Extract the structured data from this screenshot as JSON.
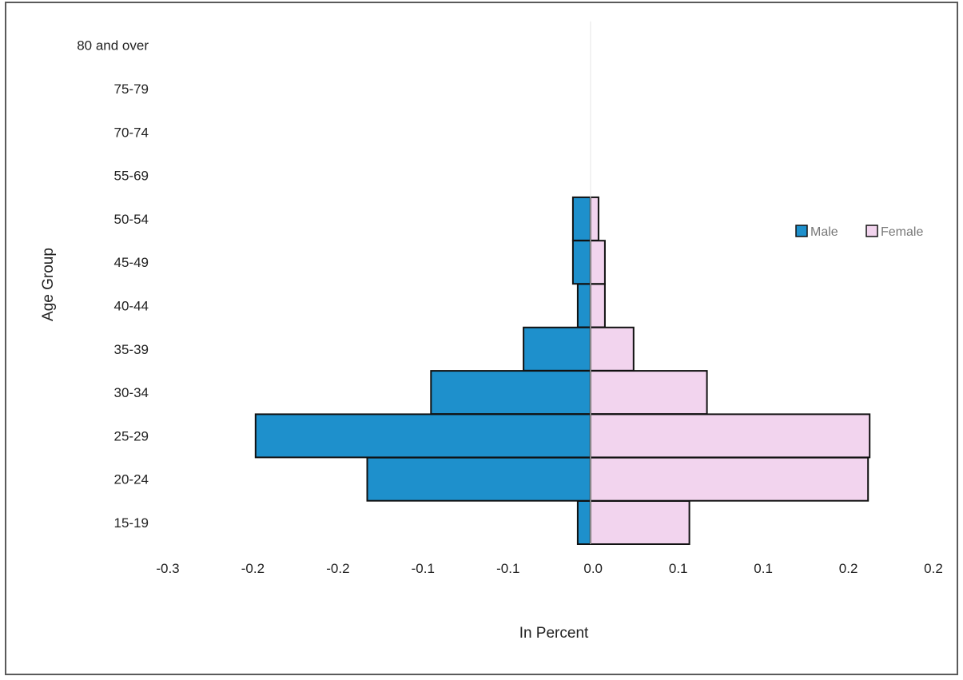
{
  "chart_data": {
    "type": "bar",
    "orientation": "horizontal",
    "subtype": "population-pyramid",
    "categories": [
      "15-19",
      "20-24",
      "25-29",
      "30-34",
      "35-39",
      "40-44",
      "45-49",
      "50-54",
      "55-69",
      "70-74",
      "75-79",
      "80 and over"
    ],
    "series": [
      {
        "name": "Male",
        "color": "#1E90CC",
        "values": [
          -0.008,
          -0.14,
          -0.21,
          -0.1,
          -0.042,
          -0.008,
          -0.011,
          -0.011,
          0,
          0,
          0,
          0
        ]
      },
      {
        "name": "Female",
        "color": "#F2D4EE",
        "values": [
          0.062,
          0.174,
          0.175,
          0.073,
          0.027,
          0.009,
          0.009,
          0.005,
          0,
          0,
          0,
          0
        ]
      }
    ],
    "x_ticks": [
      "-0.3",
      "-0.2",
      "-0.2",
      "-0.1",
      "-0.1",
      "0.0",
      "0.1",
      "0.1",
      "0.2",
      "0.2"
    ],
    "xlim": [
      -0.265,
      0.215
    ],
    "xlabel": "In Percent",
    "ylabel": "Age Group",
    "legend": {
      "position": "right",
      "entries": [
        "Male",
        "Female"
      ]
    },
    "grid": false
  }
}
